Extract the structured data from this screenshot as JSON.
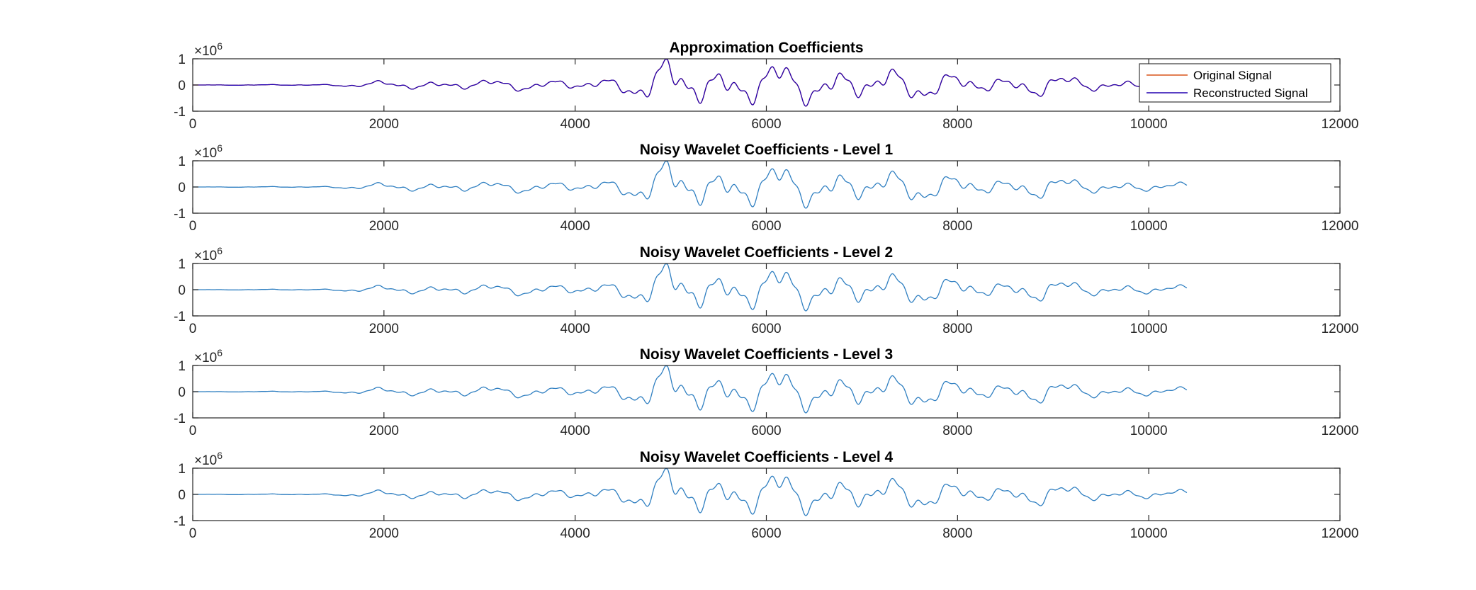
{
  "figure": {
    "plots": [
      {
        "title": "Approximation Coefficients",
        "series": [
          {
            "name": "Original Signal",
            "color": "#d95319"
          },
          {
            "name": "Reconstructed Signal",
            "color": "#2200b0"
          }
        ]
      },
      {
        "title": "Noisy Wavelet Coefficients - Level 1",
        "series": [
          {
            "color": "#2f7fc1"
          }
        ]
      },
      {
        "title": "Noisy Wavelet Coefficients - Level 2",
        "series": [
          {
            "color": "#2f7fc1"
          }
        ]
      },
      {
        "title": "Noisy Wavelet Coefficients - Level 3",
        "series": [
          {
            "color": "#2f7fc1"
          }
        ]
      },
      {
        "title": "Noisy Wavelet Coefficients - Level 4",
        "series": [
          {
            "color": "#2f7fc1"
          }
        ]
      }
    ],
    "exponent": {
      "base": "×10",
      "power": "6"
    },
    "x_ticks": [
      "0",
      "2000",
      "4000",
      "6000",
      "8000",
      "10000",
      "12000"
    ],
    "y_ticks": [
      "1",
      "0",
      "-1"
    ],
    "legend": {
      "location": "top-right",
      "entries": [
        "Original Signal",
        "Reconstructed Signal"
      ]
    }
  },
  "chart_data": {
    "type": "line",
    "layout": "5 stacked subplots",
    "xlim": [
      0,
      12000
    ],
    "ylim": [
      -1000000,
      1000000
    ],
    "grid": false,
    "signal_length": 10400,
    "waveform_envelope": {
      "x": [
        0,
        1400,
        2000,
        3000,
        4000,
        4400,
        4700,
        4960,
        5200,
        5600,
        5900,
        6100,
        6500,
        7000,
        7500,
        8000,
        8500,
        8900,
        9300,
        9700,
        10000,
        10400
      ],
      "amplitude": [
        0,
        30000,
        150000,
        200000,
        220000,
        300000,
        550000,
        1000000,
        850000,
        750000,
        780000,
        850000,
        700000,
        650000,
        600000,
        450000,
        330000,
        450000,
        270000,
        230000,
        200000,
        150000
      ]
    },
    "series": [
      {
        "name": "Original Signal",
        "subplot": "Approximation Coefficients"
      },
      {
        "name": "Reconstructed Signal",
        "subplot": "Approximation Coefficients"
      }
    ],
    "notes": "Same oscillating signal shown in every subplot; the two series in the first subplot overlap."
  }
}
